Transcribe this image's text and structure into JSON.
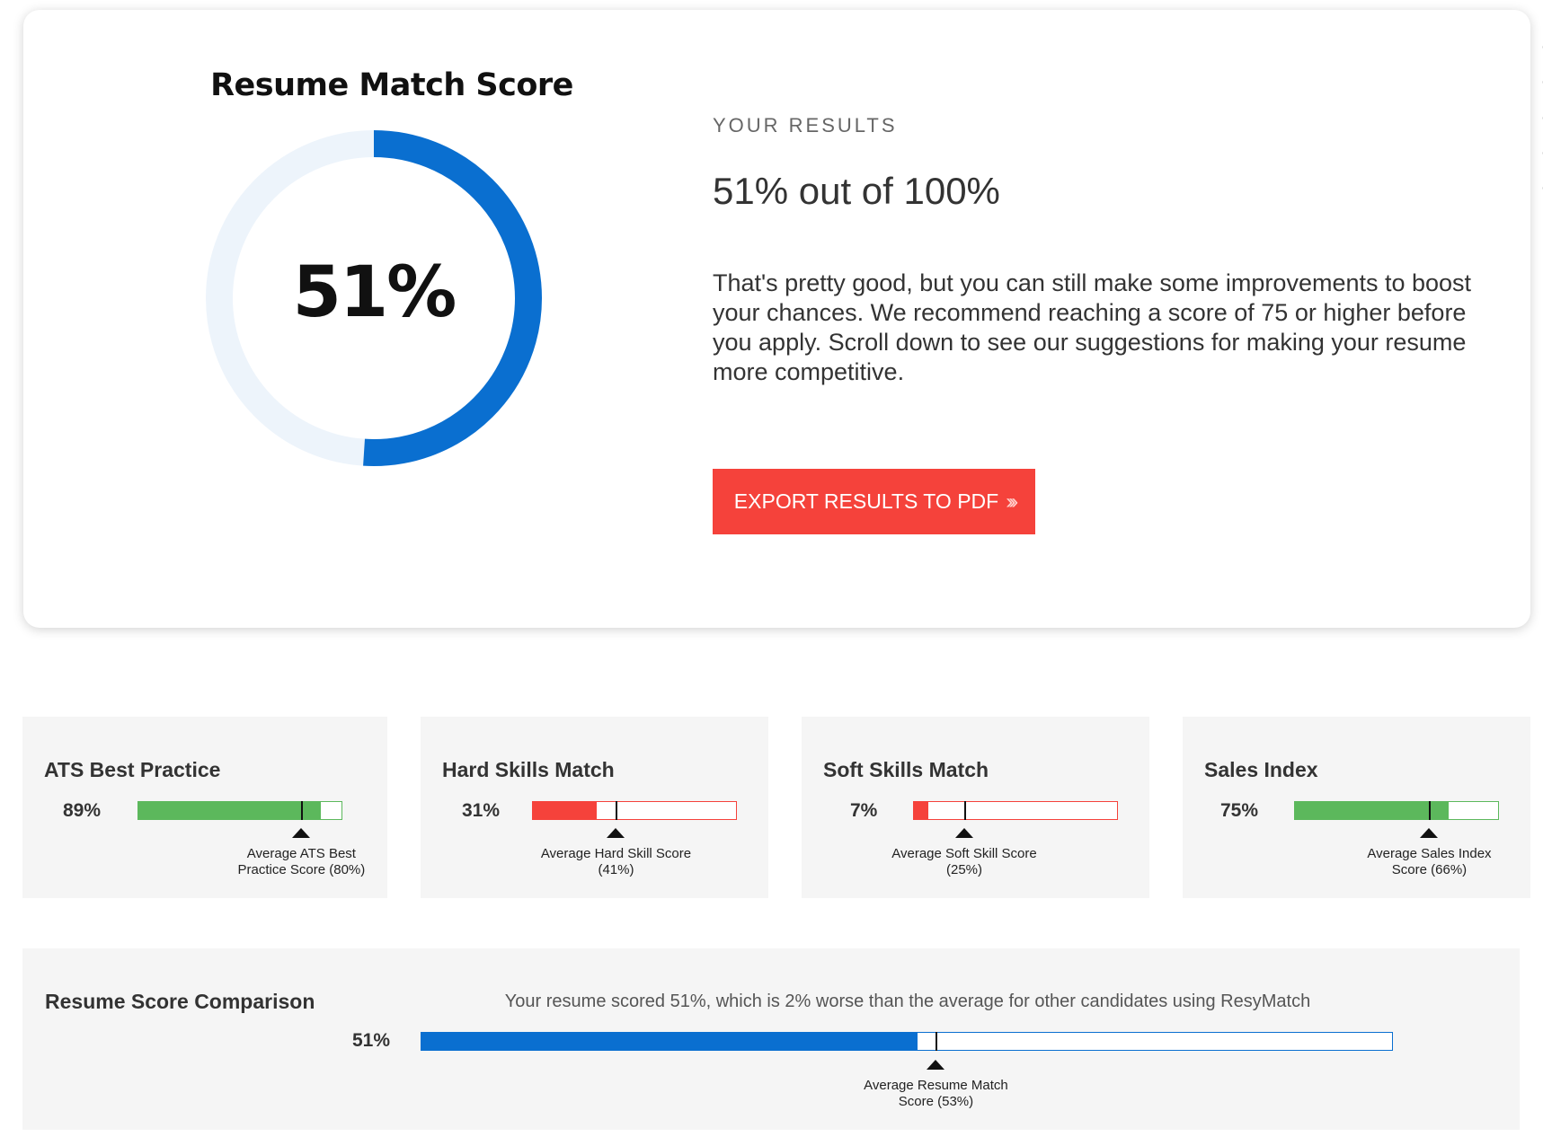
{
  "score_card": {
    "title": "Resume Match Score",
    "score_percent": 51,
    "score_display": "51%",
    "ring_color": "#0a6fd0",
    "ring_track_color": "#edf4fb",
    "results_kicker": "YOUR RESULTS",
    "results_headline": "51% out of 100%",
    "results_description": "That's pretty good, but you can still make some improvements to boost your chances. We recommend reaching a score of 75 or higher before you apply. Scroll down to see our suggestions for making your resume more competitive.",
    "export_button_label": "EXPORT RESULTS TO PDF",
    "export_button_icon": "chevrons-right-icon",
    "export_button_color": "#f5423b"
  },
  "metrics": [
    {
      "title": "ATS Best Practice",
      "value_display": "89%",
      "value_percent": 89,
      "average_percent": 80,
      "average_label": "Average ATS Best Practice Score (80%)",
      "status_color": "#5cb85c"
    },
    {
      "title": "Hard Skills Match",
      "value_display": "31%",
      "value_percent": 31,
      "average_percent": 41,
      "average_label": "Average Hard Skill Score (41%)",
      "status_color": "#f5423b"
    },
    {
      "title": "Soft Skills Match",
      "value_display": "7%",
      "value_percent": 7,
      "average_percent": 25,
      "average_label": "Average Soft Skill Score (25%)",
      "status_color": "#f5423b"
    },
    {
      "title": "Sales Index",
      "value_display": "75%",
      "value_percent": 75,
      "average_percent": 66,
      "average_label": "Average Sales Index Score (66%)",
      "status_color": "#5cb85c"
    }
  ],
  "comparison": {
    "title": "Resume Score Comparison",
    "sentence": "Your resume scored 51%, which is 2% worse than the average for other candidates using ResyMatch",
    "value_display": "51%",
    "value_percent": 51,
    "average_percent": 53,
    "average_label": "Average Resume Match Score (53%)",
    "bar_color": "#0a6fd0"
  }
}
